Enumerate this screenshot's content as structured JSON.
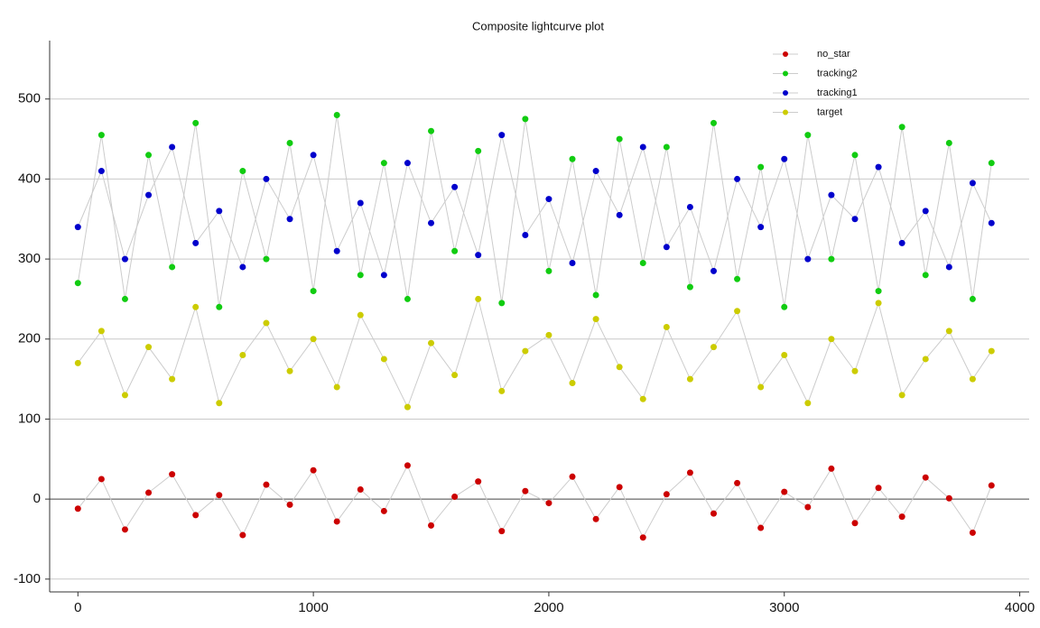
{
  "chart_data": {
    "type": "scatter",
    "title": "Composite lightcurve plot",
    "x": [
      0,
      100,
      200,
      300,
      400,
      500,
      600,
      700,
      800,
      900,
      1000,
      1100,
      1200,
      1300,
      1400,
      1500,
      1600,
      1700,
      1800,
      1900,
      2000,
      2100,
      2200,
      2300,
      2400,
      2500,
      2600,
      2700,
      2800,
      2900,
      3000,
      3100,
      3200,
      3300,
      3400,
      3500,
      3600,
      3700,
      3800,
      3880
    ],
    "series": [
      {
        "name": "no_star",
        "color": "#cc0000",
        "values": [
          -12,
          25,
          -38,
          8,
          31,
          -20,
          5,
          -45,
          18,
          -7,
          36,
          -28,
          12,
          -15,
          42,
          -33,
          3,
          22,
          -40,
          10,
          -5,
          28,
          -25,
          15,
          -48,
          6,
          33,
          -18,
          20,
          -36,
          9,
          -10,
          38,
          -30,
          14,
          -22,
          27,
          1,
          -42,
          17
        ]
      },
      {
        "name": "tracking2",
        "color": "#11cc11",
        "values": [
          270,
          455,
          250,
          430,
          290,
          470,
          240,
          410,
          300,
          445,
          260,
          480,
          280,
          420,
          250,
          460,
          310,
          435,
          245,
          475,
          285,
          425,
          255,
          450,
          295,
          440,
          265,
          470,
          275,
          415,
          240,
          455,
          300,
          430,
          260,
          465,
          280,
          445,
          250,
          420
        ]
      },
      {
        "name": "tracking1",
        "color": "#0000cc",
        "values": [
          340,
          410,
          300,
          380,
          440,
          320,
          360,
          290,
          400,
          350,
          430,
          310,
          370,
          280,
          420,
          345,
          390,
          305,
          455,
          330,
          375,
          295,
          410,
          355,
          440,
          315,
          365,
          285,
          400,
          340,
          425,
          300,
          380,
          350,
          415,
          320,
          360,
          290,
          395,
          345
        ]
      },
      {
        "name": "target",
        "color": "#cccc00",
        "values": [
          170,
          210,
          130,
          190,
          150,
          240,
          120,
          180,
          220,
          160,
          200,
          140,
          230,
          175,
          115,
          195,
          155,
          250,
          135,
          185,
          205,
          145,
          225,
          165,
          125,
          215,
          150,
          190,
          235,
          140,
          180,
          120,
          200,
          160,
          245,
          130,
          175,
          210,
          150,
          185
        ]
      }
    ],
    "xlim": [
      -120,
      4040
    ],
    "ylim": [
      -116,
      573
    ],
    "xticks": [
      0,
      1000,
      2000,
      3000,
      4000
    ],
    "yticks": [
      -100,
      0,
      100,
      200,
      300,
      400,
      500
    ],
    "grid": true,
    "legend": "upper right",
    "line_color": "#cccccc"
  }
}
